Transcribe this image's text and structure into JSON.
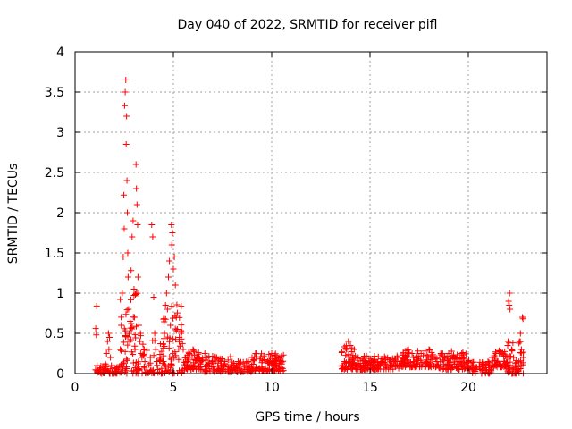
{
  "chart_data": {
    "type": "scatter",
    "title": "Day 040 of 2022, SRMTID for receiver pifl",
    "xlabel": "GPS time / hours",
    "ylabel": "SRMTID / TECUs",
    "xlim": [
      0,
      24
    ],
    "ylim": [
      0,
      4
    ],
    "xticks": [
      0,
      5,
      10,
      15,
      20
    ],
    "xtick_labels": [
      "0",
      "5",
      "10",
      "15",
      "20"
    ],
    "yticks": [
      0,
      0.5,
      1,
      1.5,
      2,
      2.5,
      3,
      3.5,
      4
    ],
    "ytick_labels": [
      "0",
      "0.5",
      "1",
      "1.5",
      "2",
      "2.5",
      "3",
      "3.5",
      "4"
    ],
    "grid": true,
    "legend": "none",
    "marker": "plus",
    "colors": {
      "points": "#ff0000",
      "grid": "#a0a0a0",
      "axes": "#000000"
    },
    "series": [
      {
        "name": "SRMTID",
        "points": [
          [
            1.05,
            0.56
          ],
          [
            1.08,
            0.48
          ],
          [
            1.1,
            0.84
          ],
          [
            1.12,
            0.1
          ],
          [
            1.15,
            0.03
          ],
          [
            1.2,
            0.02
          ],
          [
            1.3,
            0.01
          ],
          [
            1.4,
            0.02
          ],
          [
            1.5,
            0.05
          ],
          [
            1.55,
            0.12
          ],
          [
            1.6,
            0.25
          ],
          [
            1.65,
            0.4
          ],
          [
            1.7,
            0.5
          ],
          [
            1.72,
            0.3
          ],
          [
            1.75,
            0.45
          ],
          [
            1.8,
            0.2
          ],
          [
            1.85,
            0.1
          ],
          [
            1.9,
            0.02
          ],
          [
            2.0,
            0.01
          ],
          [
            2.1,
            0.02
          ],
          [
            2.2,
            0.03
          ],
          [
            2.3,
            0.3
          ],
          [
            2.35,
            0.6
          ],
          [
            2.4,
            1.0
          ],
          [
            2.45,
            1.45
          ],
          [
            2.48,
            2.22
          ],
          [
            2.5,
            1.8
          ],
          [
            2.52,
            3.33
          ],
          [
            2.55,
            3.5
          ],
          [
            2.58,
            3.65
          ],
          [
            2.6,
            2.85
          ],
          [
            2.62,
            3.2
          ],
          [
            2.64,
            2.4
          ],
          [
            2.66,
            2.0
          ],
          [
            2.68,
            1.5
          ],
          [
            2.7,
            1.2
          ],
          [
            2.72,
            0.8
          ],
          [
            2.75,
            0.5
          ],
          [
            2.78,
            0.4
          ],
          [
            2.8,
            0.65
          ],
          [
            2.85,
            1.28
          ],
          [
            2.9,
            1.7
          ],
          [
            2.95,
            1.9
          ],
          [
            3.0,
            1.05
          ],
          [
            3.02,
            0.7
          ],
          [
            3.05,
            0.3
          ],
          [
            3.1,
            2.6
          ],
          [
            3.12,
            2.3
          ],
          [
            3.15,
            2.1
          ],
          [
            3.18,
            1.85
          ],
          [
            3.2,
            1.2
          ],
          [
            3.25,
            0.6
          ],
          [
            3.3,
            0.4
          ],
          [
            3.35,
            0.25
          ],
          [
            3.4,
            0.2
          ],
          [
            3.5,
            0.3
          ],
          [
            3.55,
            0.15
          ],
          [
            3.6,
            0.01
          ],
          [
            3.7,
            0.01
          ],
          [
            3.8,
            0.02
          ],
          [
            3.9,
            1.85
          ],
          [
            3.95,
            1.7
          ],
          [
            4.0,
            0.95
          ],
          [
            4.05,
            0.5
          ],
          [
            4.1,
            0.3
          ],
          [
            4.15,
            0.15
          ],
          [
            4.2,
            0.05
          ],
          [
            4.3,
            0.02
          ],
          [
            4.4,
            0.01
          ],
          [
            4.5,
            0.15
          ],
          [
            4.55,
            0.5
          ],
          [
            4.6,
            0.85
          ],
          [
            4.65,
            1.0
          ],
          [
            4.7,
            0.8
          ],
          [
            4.75,
            1.2
          ],
          [
            4.8,
            1.4
          ],
          [
            4.85,
            0.6
          ],
          [
            4.9,
            1.85
          ],
          [
            4.92,
            1.6
          ],
          [
            4.95,
            1.75
          ],
          [
            5.0,
            1.3
          ],
          [
            5.05,
            1.45
          ],
          [
            5.1,
            1.1
          ],
          [
            5.15,
            0.7
          ],
          [
            5.2,
            0.55
          ],
          [
            5.3,
            0.45
          ],
          [
            5.4,
            0.5
          ],
          [
            5.5,
            0.3
          ],
          [
            5.6,
            0.2
          ],
          [
            5.7,
            0.15
          ],
          [
            5.8,
            0.25
          ],
          [
            6.0,
            0.3
          ],
          [
            6.2,
            0.2
          ],
          [
            6.4,
            0.15
          ],
          [
            6.6,
            0.25
          ],
          [
            6.8,
            0.1
          ],
          [
            7.0,
            0.15
          ],
          [
            7.2,
            0.2
          ],
          [
            7.4,
            0.1
          ],
          [
            7.6,
            0.15
          ],
          [
            7.8,
            0.08
          ],
          [
            8.0,
            0.05
          ],
          [
            8.2,
            0.1
          ],
          [
            8.4,
            0.12
          ],
          [
            8.6,
            0.08
          ],
          [
            8.8,
            0.15
          ],
          [
            9.0,
            0.2
          ],
          [
            9.2,
            0.25
          ],
          [
            9.4,
            0.18
          ],
          [
            9.6,
            0.22
          ],
          [
            9.8,
            0.15
          ],
          [
            10.0,
            0.25
          ],
          [
            10.2,
            0.18
          ],
          [
            10.4,
            0.2
          ],
          [
            10.5,
            0.15
          ],
          [
            13.6,
            0.1
          ],
          [
            13.7,
            0.15
          ],
          [
            13.8,
            0.3
          ],
          [
            13.9,
            0.4
          ],
          [
            14.0,
            0.35
          ],
          [
            14.2,
            0.3
          ],
          [
            14.4,
            0.2
          ],
          [
            14.6,
            0.18
          ],
          [
            14.8,
            0.15
          ],
          [
            15.0,
            0.12
          ],
          [
            15.2,
            0.15
          ],
          [
            15.4,
            0.1
          ],
          [
            15.6,
            0.15
          ],
          [
            15.8,
            0.12
          ],
          [
            16.0,
            0.1
          ],
          [
            16.2,
            0.15
          ],
          [
            16.4,
            0.2
          ],
          [
            16.6,
            0.15
          ],
          [
            16.8,
            0.2
          ],
          [
            17.0,
            0.25
          ],
          [
            17.2,
            0.2
          ],
          [
            17.4,
            0.22
          ],
          [
            17.6,
            0.25
          ],
          [
            17.8,
            0.28
          ],
          [
            18.0,
            0.3
          ],
          [
            18.2,
            0.2
          ],
          [
            18.4,
            0.15
          ],
          [
            18.6,
            0.25
          ],
          [
            18.8,
            0.2
          ],
          [
            19.0,
            0.25
          ],
          [
            19.2,
            0.2
          ],
          [
            19.4,
            0.18
          ],
          [
            19.6,
            0.15
          ],
          [
            19.8,
            0.12
          ],
          [
            20.0,
            0.15
          ],
          [
            20.2,
            0.1
          ],
          [
            20.4,
            0.08
          ],
          [
            20.6,
            0.05
          ],
          [
            20.8,
            0.1
          ],
          [
            21.0,
            0.15
          ],
          [
            21.2,
            0.2
          ],
          [
            21.4,
            0.25
          ],
          [
            21.6,
            0.28
          ],
          [
            21.8,
            0.22
          ],
          [
            22.0,
            0.35
          ],
          [
            22.02,
            0.4
          ],
          [
            22.05,
            0.9
          ],
          [
            22.08,
            0.85
          ],
          [
            22.1,
            1.0
          ],
          [
            22.12,
            0.8
          ],
          [
            22.2,
            0.3
          ],
          [
            22.3,
            0.2
          ],
          [
            22.4,
            0.1
          ],
          [
            22.5,
            0.05
          ],
          [
            22.6,
            0.4
          ],
          [
            22.65,
            0.5
          ],
          [
            22.7,
            0.3
          ],
          [
            22.75,
            0.7
          ],
          [
            22.78,
            0.68
          ],
          [
            22.8,
            0.2
          ]
        ],
        "dense_bands": [
          {
            "x_range": [
              1.0,
              2.3
            ],
            "y_range": [
              0.0,
              0.1
            ],
            "count": 50
          },
          {
            "x_range": [
              2.3,
              3.5
            ],
            "y_range": [
              0.0,
              1.0
            ],
            "count": 70
          },
          {
            "x_range": [
              3.5,
              4.5
            ],
            "y_range": [
              0.0,
              0.5
            ],
            "count": 35
          },
          {
            "x_range": [
              4.4,
              5.5
            ],
            "y_range": [
              0.0,
              0.9
            ],
            "count": 70
          },
          {
            "x_range": [
              5.5,
              6.5
            ],
            "y_range": [
              0.05,
              0.32
            ],
            "count": 60
          },
          {
            "x_range": [
              6.5,
              8.0
            ],
            "y_range": [
              0.02,
              0.22
            ],
            "count": 70
          },
          {
            "x_range": [
              8.0,
              9.0
            ],
            "y_range": [
              0.02,
              0.15
            ],
            "count": 45
          },
          {
            "x_range": [
              9.0,
              10.6
            ],
            "y_range": [
              0.03,
              0.25
            ],
            "count": 90
          },
          {
            "x_range": [
              13.5,
              14.5
            ],
            "y_range": [
              0.05,
              0.35
            ],
            "count": 60
          },
          {
            "x_range": [
              14.5,
              16.5
            ],
            "y_range": [
              0.05,
              0.22
            ],
            "count": 100
          },
          {
            "x_range": [
              16.5,
              18.5
            ],
            "y_range": [
              0.08,
              0.3
            ],
            "count": 100
          },
          {
            "x_range": [
              18.5,
              20.2
            ],
            "y_range": [
              0.05,
              0.28
            ],
            "count": 90
          },
          {
            "x_range": [
              20.2,
              21.2
            ],
            "y_range": [
              0.0,
              0.15
            ],
            "count": 45
          },
          {
            "x_range": [
              21.2,
              22.0
            ],
            "y_range": [
              0.08,
              0.3
            ],
            "count": 50
          },
          {
            "x_range": [
              22.0,
              22.8
            ],
            "y_range": [
              0.0,
              0.4
            ],
            "count": 45
          }
        ]
      }
    ]
  }
}
